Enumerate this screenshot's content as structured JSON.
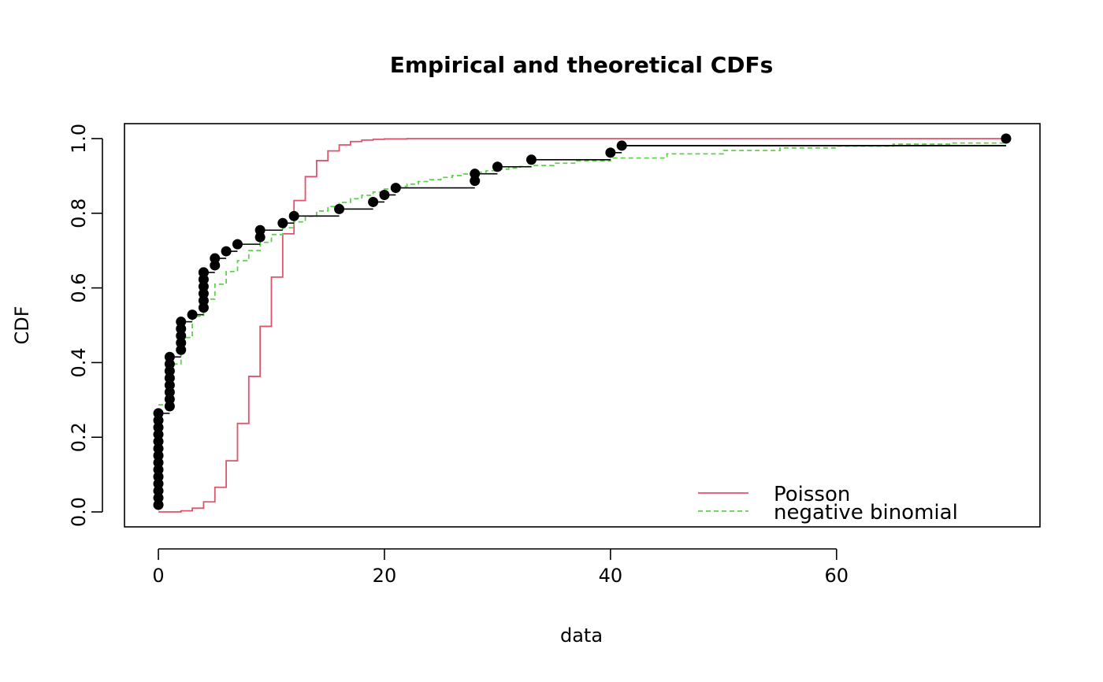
{
  "chart_data": {
    "type": "line",
    "title": "Empirical and theoretical CDFs",
    "xlabel": "data",
    "ylabel": "CDF",
    "xlim": [
      -3,
      78
    ],
    "ylim": [
      -0.04,
      1.04
    ],
    "x_ticks": [
      0,
      20,
      40,
      60
    ],
    "y_ticks": [
      0.0,
      0.2,
      0.4,
      0.6,
      0.8,
      1.0
    ],
    "x_tick_labels": [
      "0",
      "20",
      "40",
      "60"
    ],
    "y_tick_labels": [
      "0.0",
      "0.2",
      "0.4",
      "0.6",
      "0.8",
      "1.0"
    ],
    "grid": false,
    "legend_position": "bottom-right",
    "series": [
      {
        "name": "",
        "kind": "empirical",
        "color": "#000000",
        "x": [
          0,
          0,
          0,
          0,
          0,
          0,
          0,
          0,
          0,
          0,
          0,
          0,
          0,
          0,
          1,
          1,
          1,
          1,
          1,
          1,
          1,
          1,
          2,
          2,
          2,
          2,
          2,
          3,
          4,
          4,
          4,
          4,
          4,
          4,
          4,
          5,
          5,
          6,
          7,
          9,
          9,
          11,
          12,
          16,
          19,
          20,
          21,
          28,
          28,
          30,
          33,
          40,
          41,
          75
        ],
        "y": [
          0.0189,
          0.0377,
          0.0566,
          0.0755,
          0.0943,
          0.1132,
          0.1321,
          0.1509,
          0.1698,
          0.1887,
          0.2075,
          0.2264,
          0.2453,
          0.2642,
          0.283,
          0.3019,
          0.3208,
          0.3396,
          0.3585,
          0.3774,
          0.3962,
          0.4151,
          0.434,
          0.4528,
          0.4717,
          0.4906,
          0.5094,
          0.5283,
          0.5472,
          0.566,
          0.5849,
          0.6038,
          0.6226,
          0.6415,
          0.6415,
          0.6604,
          0.6792,
          0.6981,
          0.717,
          0.7358,
          0.7547,
          0.7736,
          0.7925,
          0.8113,
          0.8302,
          0.8491,
          0.8679,
          0.8868,
          0.9057,
          0.9245,
          0.9434,
          0.9623,
          0.9811,
          1.0
        ]
      },
      {
        "name": "Poisson",
        "kind": "theoretical",
        "color": "#DF536B",
        "line_style": "solid",
        "x": [
          0,
          1,
          2,
          3,
          4,
          5,
          6,
          7,
          8,
          9,
          10,
          11,
          12,
          13,
          14,
          15,
          16,
          17,
          18,
          19,
          20,
          22,
          75
        ],
        "y": [
          0.0,
          0.0,
          0.003,
          0.01,
          0.027,
          0.066,
          0.137,
          0.237,
          0.363,
          0.497,
          0.629,
          0.745,
          0.834,
          0.898,
          0.941,
          0.967,
          0.983,
          0.992,
          0.996,
          0.998,
          0.999,
          1.0,
          1.0
        ]
      },
      {
        "name": "negative binomial",
        "kind": "theoretical",
        "color": "#61D04F",
        "line_style": "dashed",
        "x": [
          0,
          1,
          2,
          3,
          4,
          5,
          6,
          7,
          8,
          9,
          10,
          11,
          12,
          13,
          14,
          15,
          16,
          17,
          18,
          19,
          20,
          21,
          22,
          23,
          24,
          25,
          26,
          27,
          28,
          29,
          30,
          31,
          32,
          33,
          35,
          37,
          40,
          45,
          50,
          55,
          60,
          65,
          70,
          75
        ],
        "y": [
          0.287,
          0.396,
          0.467,
          0.524,
          0.57,
          0.61,
          0.644,
          0.673,
          0.7,
          0.722,
          0.743,
          0.761,
          0.777,
          0.792,
          0.806,
          0.818,
          0.829,
          0.839,
          0.848,
          0.857,
          0.865,
          0.872,
          0.878,
          0.885,
          0.89,
          0.896,
          0.901,
          0.905,
          0.91,
          0.914,
          0.918,
          0.921,
          0.925,
          0.928,
          0.934,
          0.94,
          0.948,
          0.959,
          0.968,
          0.975,
          0.98,
          0.985,
          0.988,
          0.991
        ]
      }
    ],
    "legend": [
      {
        "label": "Poisson",
        "color": "#DF536B",
        "line_style": "solid"
      },
      {
        "label": "negative binomial",
        "color": "#61D04F",
        "line_style": "dashed"
      }
    ]
  }
}
